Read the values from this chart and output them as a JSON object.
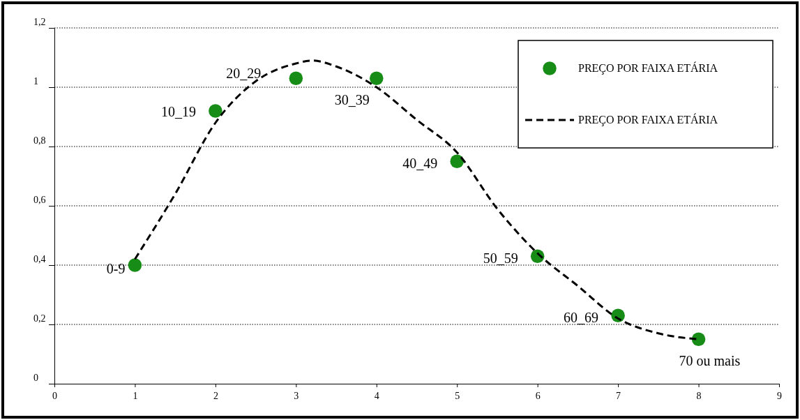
{
  "chart_data": {
    "type": "scatter",
    "x": [
      1,
      2,
      3,
      4,
      5,
      6,
      7,
      8
    ],
    "series": [
      {
        "name": "PREÇO POR FAIXA ETÁRIA",
        "color": "#178c17",
        "marker": "circle",
        "values": [
          0.4,
          0.92,
          1.03,
          1.03,
          0.75,
          0.43,
          0.23,
          0.15
        ]
      },
      {
        "name": "PREÇO POR FAIXA ETÁRIA",
        "type": "line",
        "color": "#000000",
        "marker": "none",
        "line_style": "dashed",
        "x": [
          1,
          1.5,
          2,
          2.5,
          3,
          3.2,
          3.5,
          4,
          4.5,
          5,
          5.5,
          6,
          6.5,
          7,
          7.5,
          8
        ],
        "values": [
          0.42,
          0.64,
          0.88,
          1.02,
          1.08,
          1.09,
          1.07,
          1.0,
          0.89,
          0.78,
          0.59,
          0.44,
          0.33,
          0.22,
          0.17,
          0.15
        ]
      }
    ],
    "annotations": [
      {
        "text": "0-9",
        "x": 1,
        "y": 0.4
      },
      {
        "text": "10_19",
        "x": 2,
        "y": 0.92
      },
      {
        "text": "20_29",
        "x": 3,
        "y": 1.03
      },
      {
        "text": "30_39",
        "x": 4,
        "y": 1.03
      },
      {
        "text": "40_49",
        "x": 5,
        "y": 0.75
      },
      {
        "text": "50_59",
        "x": 6,
        "y": 0.43
      },
      {
        "text": "60_69",
        "x": 7,
        "y": 0.23
      },
      {
        "text": "70 ou mais",
        "x": 8,
        "y": 0.15
      }
    ],
    "xlim": [
      0,
      9
    ],
    "xticks": [
      0,
      1,
      2,
      3,
      4,
      5,
      6,
      7,
      8,
      9
    ],
    "ylim": [
      0,
      1.2
    ],
    "yticks": [
      0,
      {
        "value": 0.2,
        "label": "0,2"
      },
      {
        "value": 0.4,
        "label": "0,4"
      },
      {
        "value": 0.6,
        "label": "0,6"
      },
      {
        "value": 0.8,
        "label": "0,8"
      },
      1,
      {
        "value": 1.2,
        "label": "1,2"
      }
    ],
    "grid": "y",
    "legend": "top right"
  }
}
